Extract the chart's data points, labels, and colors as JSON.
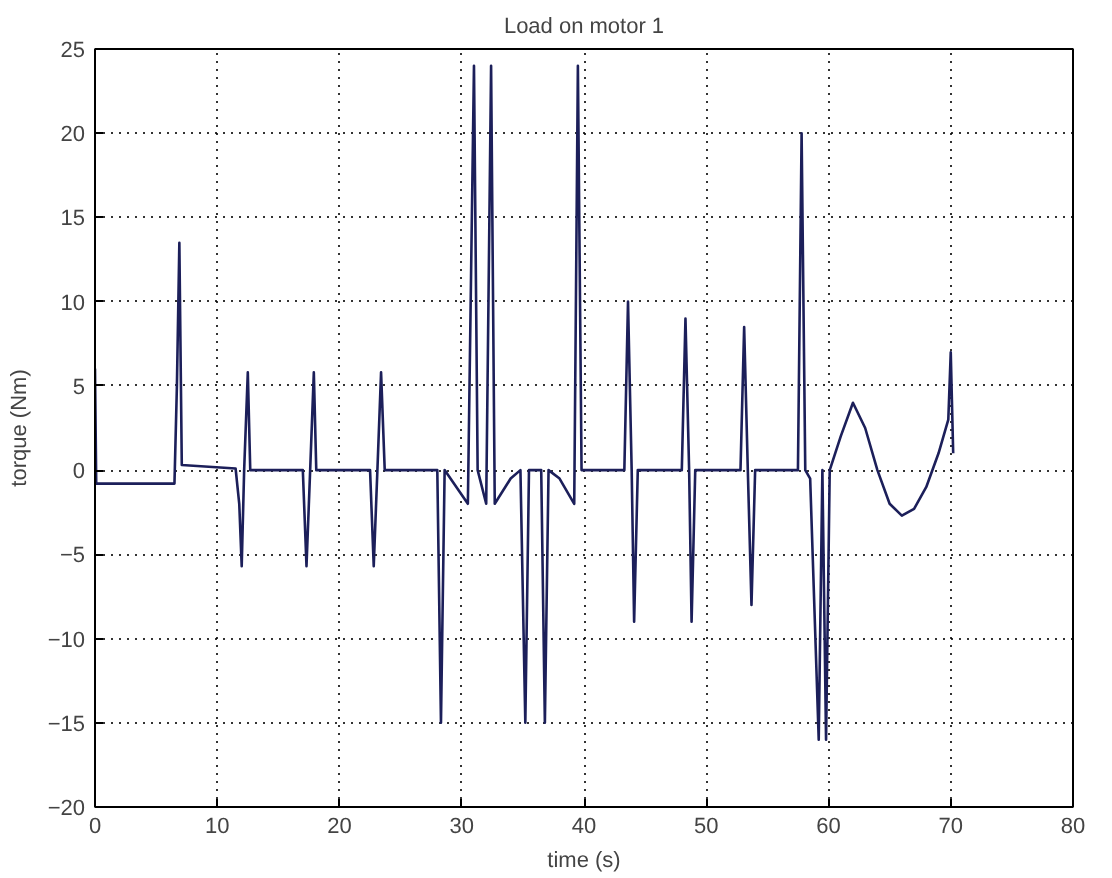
{
  "chart_data": {
    "type": "line",
    "title": "Load on motor 1",
    "xlabel": "time (s)",
    "ylabel": "torque (Nm)",
    "xlim": [
      0,
      80
    ],
    "ylim": [
      -20,
      25
    ],
    "xticks": [
      0,
      10,
      20,
      30,
      40,
      50,
      60,
      70,
      80
    ],
    "yticks": [
      -20,
      -15,
      -10,
      -5,
      0,
      5,
      10,
      15,
      20,
      25
    ],
    "grid": true,
    "marker": "none",
    "line_style": "solid",
    "series": [
      {
        "color": "#1c1f5a",
        "x": [
          0,
          0,
          0.1,
          6.5,
          6.7,
          6.9,
          7.1,
          11.5,
          11.8,
          12.0,
          12.2,
          12.5,
          12.7,
          17,
          17.3,
          17.6,
          17.9,
          18.1,
          22.5,
          22.8,
          23.1,
          23.4,
          23.7,
          28,
          28.3,
          28.6,
          30.5,
          31.0,
          31.3,
          32,
          32.4,
          32.7,
          34,
          34.8,
          35.2,
          35.5,
          36.5,
          36.8,
          37.1,
          38,
          39.2,
          39.5,
          39.8,
          43.3,
          43.6,
          43.9,
          44.1,
          44.4,
          48,
          48.3,
          48.6,
          48.8,
          49.1,
          52.8,
          53.1,
          53.4,
          53.7,
          54,
          57.5,
          57.8,
          58.1,
          58.5,
          59.2,
          59.5,
          59.8,
          60.1,
          61,
          62,
          63,
          64,
          65,
          66,
          67,
          68,
          69,
          69.8,
          70,
          70.2
        ],
        "values": [
          0,
          6,
          -0.8,
          -0.8,
          5,
          13.5,
          0.3,
          0.1,
          -2,
          -5.7,
          0,
          5.8,
          0,
          0,
          -5.7,
          0,
          5.8,
          0,
          0,
          -5.7,
          0,
          5.8,
          0,
          0,
          -15,
          0,
          -2,
          24,
          0,
          -2,
          24,
          -2,
          -0.5,
          0,
          -15,
          0,
          0,
          -15,
          0,
          -0.5,
          -2,
          24,
          0,
          0,
          10,
          0,
          -9,
          0,
          0,
          9,
          0,
          -9,
          0,
          0,
          8.5,
          0,
          -8,
          0,
          0,
          20,
          0,
          -0.5,
          -16,
          0,
          -16,
          0,
          2,
          4,
          2.5,
          0,
          -2,
          -2.7,
          -2.3,
          -1,
          1,
          3,
          7,
          1
        ]
      }
    ]
  }
}
